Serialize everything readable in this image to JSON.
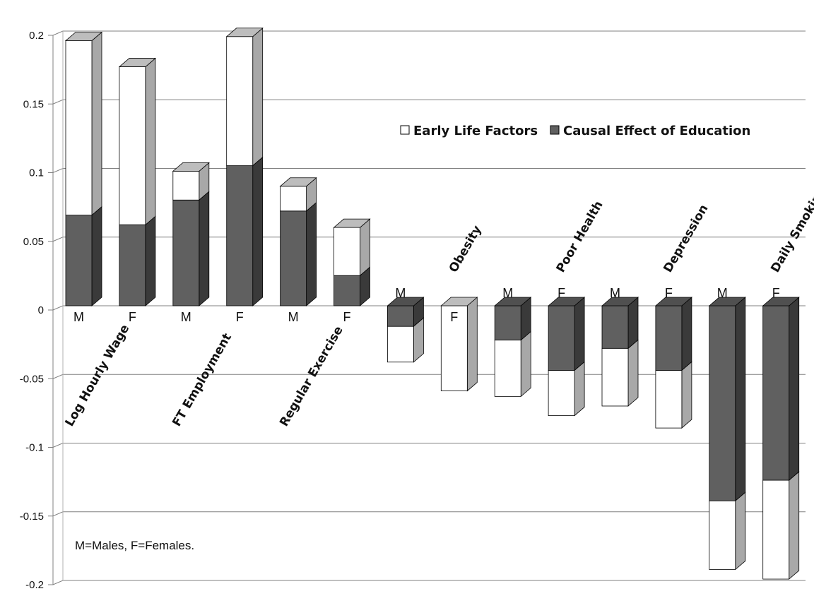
{
  "chart_data": {
    "type": "bar",
    "stacked": true,
    "three_d": true,
    "ylim": [
      -0.2,
      0.2
    ],
    "y_ticks": [
      "0.2",
      "0.15",
      "0.1",
      "0.05",
      "0",
      "-0.05",
      "-0.1",
      "-0.15",
      "-0.2"
    ],
    "y_tick_values": [
      0.2,
      0.15,
      0.1,
      0.05,
      0,
      -0.05,
      -0.1,
      -0.15,
      -0.2
    ],
    "grid": true,
    "legend_position": "top-right",
    "colors": {
      "Early Life Factors": "#ffffff",
      "Causal Effect of Education": "#606060"
    },
    "groups": [
      "Log Hourly Wage",
      "FT Employment",
      "Regular Exercise",
      "Obesity",
      "Poor Health",
      "Depression",
      "Daily Smoking"
    ],
    "bars": [
      {
        "group": "Log Hourly Wage",
        "sex": "M",
        "education": 0.066,
        "early_life": 0.127
      },
      {
        "group": "Log Hourly Wage",
        "sex": "F",
        "education": 0.059,
        "early_life": 0.115
      },
      {
        "group": "FT Employment",
        "sex": "M",
        "education": 0.077,
        "early_life": 0.021
      },
      {
        "group": "FT Employment",
        "sex": "F",
        "education": 0.102,
        "early_life": 0.094
      },
      {
        "group": "Regular Exercise",
        "sex": "M",
        "education": 0.069,
        "early_life": 0.018
      },
      {
        "group": "Regular Exercise",
        "sex": "F",
        "education": 0.022,
        "early_life": 0.035
      },
      {
        "group": "Obesity",
        "sex": "M",
        "education": -0.015,
        "early_life": -0.026
      },
      {
        "group": "Obesity",
        "sex": "F",
        "education": 0.0,
        "early_life": -0.062
      },
      {
        "group": "Poor Health",
        "sex": "M",
        "education": -0.025,
        "early_life": -0.041
      },
      {
        "group": "Poor Health",
        "sex": "F",
        "education": -0.047,
        "early_life": -0.033
      },
      {
        "group": "Depression",
        "sex": "M",
        "education": -0.031,
        "early_life": -0.042
      },
      {
        "group": "Depression",
        "sex": "F",
        "education": -0.047,
        "early_life": -0.042
      },
      {
        "group": "Daily Smoking",
        "sex": "M",
        "education": -0.142,
        "early_life": -0.05
      },
      {
        "group": "Daily Smoking",
        "sex": "F",
        "education": -0.127,
        "early_life": -0.072
      }
    ],
    "series": [
      {
        "name": "Early Life Factors"
      },
      {
        "name": "Causal Effect of Education"
      }
    ],
    "annotation": "M=Males, F=Females."
  }
}
